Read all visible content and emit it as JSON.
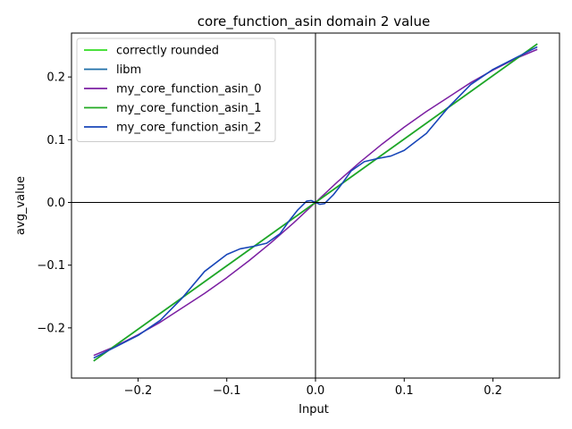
{
  "chart_data": {
    "type": "line",
    "title": "core_function_asin domain 2 value",
    "xlabel": "Input",
    "ylabel": "avg_value",
    "xlim": [
      -0.275,
      0.275
    ],
    "ylim": [
      -0.28,
      0.27
    ],
    "xticks": [
      -0.2,
      -0.1,
      0.0,
      0.1,
      0.2
    ],
    "xtick_labels": [
      "−0.2",
      "−0.1",
      "0.0",
      "0.1",
      "0.2"
    ],
    "yticks": [
      -0.2,
      -0.1,
      0.0,
      0.1,
      0.2
    ],
    "ytick_labels": [
      "−0.2",
      "−0.1",
      "0.0",
      "0.1",
      "0.2"
    ],
    "grid": false,
    "legend_position": "top-left",
    "reference_lines": {
      "x": 0,
      "y": 0
    },
    "series": [
      {
        "name": "correctly rounded",
        "color": "#33dd22",
        "x": [
          -0.25,
          0.25
        ],
        "y": [
          -0.2527,
          0.2527
        ]
      },
      {
        "name": "libm",
        "color": "#1f6fa8",
        "x": [
          -0.25,
          0.25
        ],
        "y": [
          -0.2527,
          0.2527
        ]
      },
      {
        "name": "my_core_function_asin_0",
        "color": "#7b1fa2",
        "x": [
          -0.25,
          -0.225,
          -0.2,
          -0.175,
          -0.15,
          -0.125,
          -0.1,
          -0.075,
          -0.05,
          -0.025,
          0.0,
          0.025,
          0.05,
          0.075,
          0.1,
          0.125,
          0.15,
          0.175,
          0.2,
          0.225,
          0.25
        ],
        "y": [
          -0.244,
          -0.229,
          -0.211,
          -0.191,
          -0.168,
          -0.145,
          -0.12,
          -0.093,
          -0.064,
          -0.033,
          0.0,
          0.033,
          0.064,
          0.093,
          0.12,
          0.145,
          0.168,
          0.191,
          0.211,
          0.229,
          0.244
        ]
      },
      {
        "name": "my_core_function_asin_1",
        "color": "#22aa22",
        "x": [
          -0.25,
          0.25
        ],
        "y": [
          -0.2527,
          0.2527
        ]
      },
      {
        "name": "my_core_function_asin_2",
        "color": "#1846b8",
        "x": [
          -0.25,
          -0.225,
          -0.2,
          -0.175,
          -0.15,
          -0.125,
          -0.1,
          -0.085,
          -0.07,
          -0.055,
          -0.04,
          -0.03,
          -0.02,
          -0.01,
          -0.005,
          0.0,
          0.005,
          0.01,
          0.02,
          0.03,
          0.04,
          0.055,
          0.07,
          0.085,
          0.1,
          0.125,
          0.15,
          0.175,
          0.2,
          0.225,
          0.25
        ],
        "y": [
          -0.248,
          -0.23,
          -0.212,
          -0.188,
          -0.152,
          -0.11,
          -0.083,
          -0.074,
          -0.07,
          -0.065,
          -0.05,
          -0.03,
          -0.012,
          0.002,
          0.003,
          0.0,
          -0.003,
          -0.002,
          0.012,
          0.03,
          0.05,
          0.065,
          0.07,
          0.074,
          0.083,
          0.11,
          0.152,
          0.188,
          0.212,
          0.23,
          0.248
        ]
      }
    ]
  }
}
